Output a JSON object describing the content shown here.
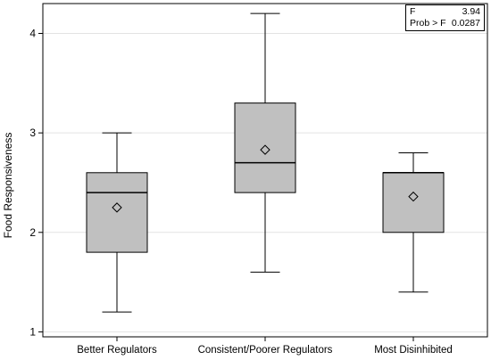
{
  "chart_data": {
    "type": "box",
    "ylabel": "Food Responsiveness",
    "ylim": [
      0.95,
      4.3
    ],
    "yticks": [
      1,
      2,
      3,
      4
    ],
    "grid": true,
    "categories": [
      "Better Regulators",
      "Consistent/Poorer Regulators",
      "Most Disinhibited"
    ],
    "boxes": [
      {
        "category": "Better Regulators",
        "min": 1.2,
        "q1": 1.8,
        "median": 2.4,
        "q3": 2.6,
        "max": 3.0,
        "mean": 2.25
      },
      {
        "category": "Consistent/Poorer Regulators",
        "min": 1.6,
        "q1": 2.4,
        "median": 2.7,
        "q3": 3.3,
        "max": 4.2,
        "mean": 2.83
      },
      {
        "category": "Most Disinhibited",
        "min": 1.4,
        "q1": 2.0,
        "median": 2.6,
        "q3": 2.6,
        "max": 2.8,
        "mean": 2.36
      }
    ],
    "box_color": "#c0c0c0",
    "annotation": {
      "rows": [
        {
          "label": "F",
          "value": "3.94"
        },
        {
          "label": "Prob > F",
          "value": "0.0287"
        }
      ]
    }
  }
}
